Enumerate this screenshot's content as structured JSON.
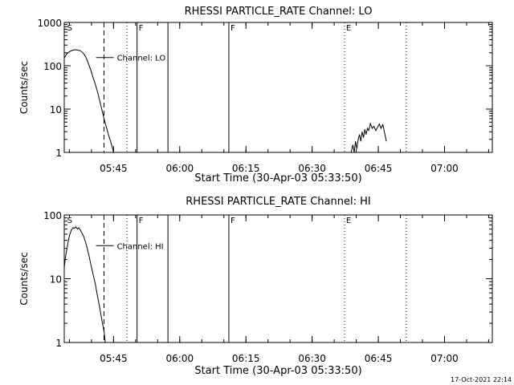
{
  "footer": {
    "timestamp": "17-Oct-2021 22:14"
  },
  "chart_data": [
    {
      "type": "line",
      "title": "RHESSI PARTICLE_RATE Channel: LO",
      "xlabel": "Start Time (30-Apr-03 05:33:50)",
      "ylabel": "Counts/sec",
      "x_unit": "minutes after 05:33:50",
      "xlim": [
        0,
        97
      ],
      "ylim": [
        1,
        1000
      ],
      "yscale": "log",
      "x_ticks": [
        {
          "label": "05:45",
          "value": 11.17
        },
        {
          "label": "06:00",
          "value": 26.17
        },
        {
          "label": "06:15",
          "value": 41.17
        },
        {
          "label": "06:30",
          "value": 56.17
        },
        {
          "label": "06:45",
          "value": 71.17
        },
        {
          "label": "07:00",
          "value": 86.17
        }
      ],
      "y_ticks": [
        {
          "label": "1",
          "value": 1
        },
        {
          "label": "10",
          "value": 10
        },
        {
          "label": "100",
          "value": 100
        },
        {
          "label": "1000",
          "value": 1000
        }
      ],
      "markers": [
        {
          "label": "S",
          "x": 0.3,
          "style": "none"
        },
        {
          "label": "",
          "x": 9.0,
          "style": "dashed"
        },
        {
          "label": "",
          "x": 14.2,
          "style": "dotted"
        },
        {
          "label": "F",
          "x": 16.5,
          "style": "solid"
        },
        {
          "label": "",
          "x": 23.5,
          "style": "solid"
        },
        {
          "label": "F",
          "x": 37.3,
          "style": "solid"
        },
        {
          "label": "E",
          "x": 63.5,
          "style": "dotted"
        },
        {
          "label": "",
          "x": 77.5,
          "style": "dotted"
        }
      ],
      "legend": {
        "label": "Channel: LO",
        "x": 7.2,
        "y": 155
      },
      "series": [
        {
          "name": "LO",
          "segments": [
            [
              [
                0,
                150
              ],
              [
                0.5,
                185
              ],
              [
                1.0,
                205
              ],
              [
                1.5,
                220
              ],
              [
                2.0,
                230
              ],
              [
                2.5,
                235
              ],
              [
                3.0,
                232
              ],
              [
                3.5,
                225
              ],
              [
                4.0,
                210
              ],
              [
                4.5,
                185
              ],
              [
                5.0,
                150
              ],
              [
                5.5,
                110
              ],
              [
                6.0,
                80
              ],
              [
                6.5,
                55
              ],
              [
                7.0,
                38
              ],
              [
                7.5,
                26
              ],
              [
                8.0,
                16
              ],
              [
                8.5,
                10
              ],
              [
                9.0,
                6
              ],
              [
                9.5,
                4
              ],
              [
                10.0,
                2.6
              ],
              [
                10.5,
                1.8
              ],
              [
                10.8,
                1.4
              ],
              [
                11.2,
                1.0
              ]
            ],
            [
              [
                65.0,
                1.0
              ],
              [
                65.4,
                1.5
              ],
              [
                65.7,
                1.0
              ],
              [
                66.0,
                1.8
              ],
              [
                66.3,
                1.2
              ],
              [
                66.6,
                2.0
              ],
              [
                66.9,
                2.6
              ],
              [
                67.2,
                1.8
              ],
              [
                67.5,
                3.0
              ],
              [
                67.8,
                2.2
              ],
              [
                68.1,
                3.4
              ],
              [
                68.4,
                2.6
              ],
              [
                68.7,
                3.6
              ],
              [
                69.0,
                3.2
              ],
              [
                69.4,
                4.6
              ],
              [
                69.8,
                3.6
              ],
              [
                70.2,
                4.0
              ],
              [
                70.6,
                3.2
              ],
              [
                71.0,
                3.8
              ],
              [
                71.4,
                4.5
              ],
              [
                71.8,
                3.6
              ],
              [
                72.2,
                4.4
              ],
              [
                72.6,
                2.8
              ],
              [
                73.0,
                1.8
              ]
            ]
          ]
        }
      ]
    },
    {
      "type": "line",
      "title": "RHESSI PARTICLE_RATE Channel: HI",
      "xlabel": "Start Time (30-Apr-03 05:33:50)",
      "ylabel": "Counts/sec",
      "x_unit": "minutes after 05:33:50",
      "xlim": [
        0,
        97
      ],
      "ylim": [
        1,
        100
      ],
      "yscale": "log",
      "x_ticks": [
        {
          "label": "05:45",
          "value": 11.17
        },
        {
          "label": "06:00",
          "value": 26.17
        },
        {
          "label": "06:15",
          "value": 41.17
        },
        {
          "label": "06:30",
          "value": 56.17
        },
        {
          "label": "06:45",
          "value": 71.17
        },
        {
          "label": "07:00",
          "value": 86.17
        }
      ],
      "y_ticks": [
        {
          "label": "1",
          "value": 1
        },
        {
          "label": "10",
          "value": 10
        },
        {
          "label": "100",
          "value": 100
        }
      ],
      "markers": [
        {
          "label": "S",
          "x": 0.3,
          "style": "none"
        },
        {
          "label": "",
          "x": 9.0,
          "style": "dashed"
        },
        {
          "label": "",
          "x": 14.2,
          "style": "dotted"
        },
        {
          "label": "F",
          "x": 16.5,
          "style": "solid"
        },
        {
          "label": "",
          "x": 23.5,
          "style": "solid"
        },
        {
          "label": "F",
          "x": 37.3,
          "style": "solid"
        },
        {
          "label": "E",
          "x": 63.5,
          "style": "dotted"
        },
        {
          "label": "",
          "x": 77.5,
          "style": "dotted"
        }
      ],
      "legend": {
        "label": "Channel: HI",
        "x": 7.2,
        "y": 33
      },
      "series": [
        {
          "name": "HI",
          "segments": [
            [
              [
                0,
                15
              ],
              [
                0.3,
                22
              ],
              [
                0.7,
                32
              ],
              [
                1.0,
                42
              ],
              [
                1.3,
                50
              ],
              [
                1.6,
                58
              ],
              [
                2.0,
                63
              ],
              [
                2.3,
                62
              ],
              [
                2.6,
                65
              ],
              [
                3.0,
                60
              ],
              [
                3.3,
                63
              ],
              [
                3.7,
                57
              ],
              [
                4.0,
                52
              ],
              [
                4.4,
                46
              ],
              [
                4.8,
                38
              ],
              [
                5.2,
                30
              ],
              [
                5.6,
                23
              ],
              [
                6.0,
                17
              ],
              [
                6.5,
                12
              ],
              [
                7.0,
                8.5
              ],
              [
                7.5,
                5.5
              ],
              [
                8.0,
                3.6
              ],
              [
                8.5,
                2.3
              ],
              [
                9.0,
                1.5
              ],
              [
                9.3,
                1.0
              ]
            ]
          ]
        }
      ]
    }
  ]
}
